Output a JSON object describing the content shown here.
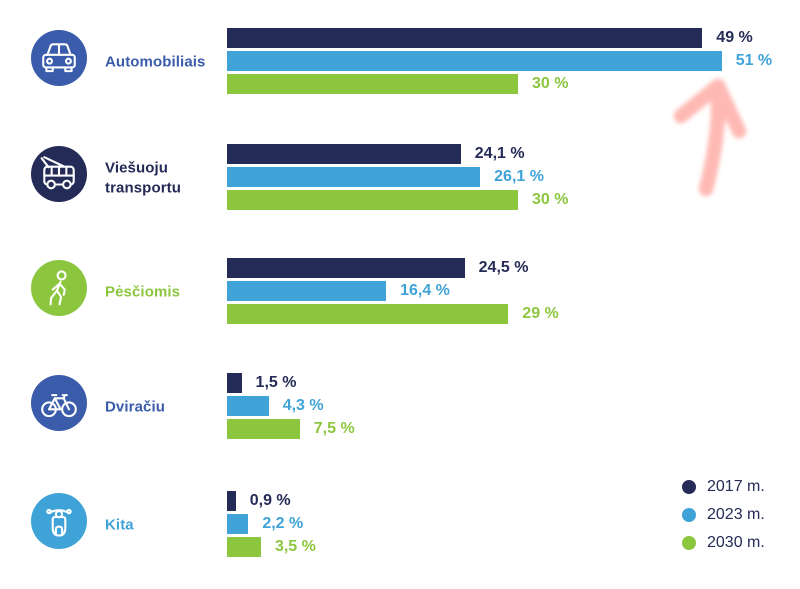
{
  "chart_data": {
    "type": "bar",
    "orientation": "horizontal",
    "categories": [
      "Automobiliais",
      "Viešuoju transportu",
      "Pėsčiomis",
      "Dviračiu",
      "Kita"
    ],
    "series": [
      {
        "name": "2017 m.",
        "color": "#242b56",
        "values": [
          49,
          24.1,
          24.5,
          1.5,
          0.9
        ],
        "display": [
          "49 %",
          "24,1 %",
          "24,5 %",
          "1,5 %",
          "0,9 %"
        ]
      },
      {
        "name": "2023 m.",
        "color": "#3fa3d8",
        "values": [
          51,
          26.1,
          16.4,
          4.3,
          2.2
        ],
        "display": [
          "51 %",
          "26,1 %",
          "16,4 %",
          "4,3 %",
          "2,2 %"
        ]
      },
      {
        "name": "2030 m.",
        "color": "#8cc63f",
        "values": [
          30,
          30,
          29,
          7.5,
          3.5
        ],
        "display": [
          "30 %",
          "30 %",
          "29 %",
          "7,5 %",
          "3,5 %"
        ]
      }
    ],
    "xlim": [
      0,
      51
    ],
    "grid": false,
    "legend_position": "bottom-right"
  },
  "groups": [
    {
      "icon": "car-icon",
      "icon_bg": "#3a5caa",
      "label_color": "#3a5caa"
    },
    {
      "icon": "trolleybus-icon",
      "icon_bg": "#242b56",
      "label_color": "#242b56"
    },
    {
      "icon": "pedestrian-icon",
      "icon_bg": "#8cc63f",
      "label_color": "#8cc63f"
    },
    {
      "icon": "bicycle-icon",
      "icon_bg": "#3a5caa",
      "label_color": "#3a5caa"
    },
    {
      "icon": "scooter-icon",
      "icon_bg": "#3fa3d8",
      "label_color": "#3fa3d8"
    }
  ],
  "legend": {
    "items": [
      {
        "label": "2017 m.",
        "color": "#242b56"
      },
      {
        "label": "2023 m.",
        "color": "#3fa3d8"
      },
      {
        "label": "2030 m.",
        "color": "#8cc63f"
      }
    ]
  },
  "annotation": {
    "type": "hand-drawn-arrow-up",
    "color": "#ffb4ae",
    "points_to": "51 %"
  }
}
